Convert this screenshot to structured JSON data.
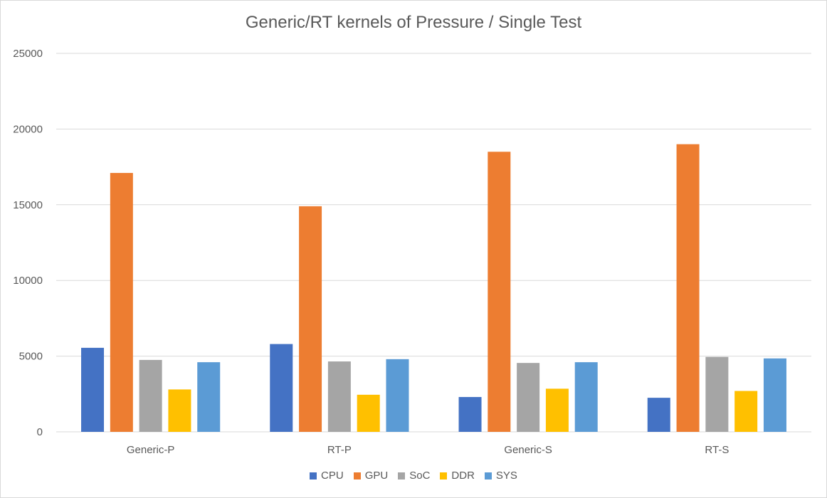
{
  "chart_data": {
    "type": "bar",
    "title": "Generic/RT kernels of Pressure / Single Test",
    "categories": [
      "Generic-P",
      "RT-P",
      "Generic-S",
      "RT-S"
    ],
    "series": [
      {
        "name": "CPU",
        "color": "#4472c4",
        "values": [
          5550,
          5800,
          2300,
          2250
        ]
      },
      {
        "name": "GPU",
        "color": "#ed7d31",
        "values": [
          17100,
          14900,
          18500,
          19000
        ]
      },
      {
        "name": "SoC",
        "color": "#a5a5a5",
        "values": [
          4750,
          4650,
          4550,
          4950
        ]
      },
      {
        "name": "DDR",
        "color": "#ffc000",
        "values": [
          2800,
          2450,
          2850,
          2700
        ]
      },
      {
        "name": "SYS",
        "color": "#5b9bd5",
        "values": [
          4600,
          4800,
          4600,
          4850
        ]
      }
    ],
    "ylim": [
      0,
      25000
    ],
    "yticks": [
      "0",
      "5000",
      "10000",
      "15000",
      "20000",
      "25000"
    ],
    "grid": true,
    "legend_position": "bottom"
  }
}
